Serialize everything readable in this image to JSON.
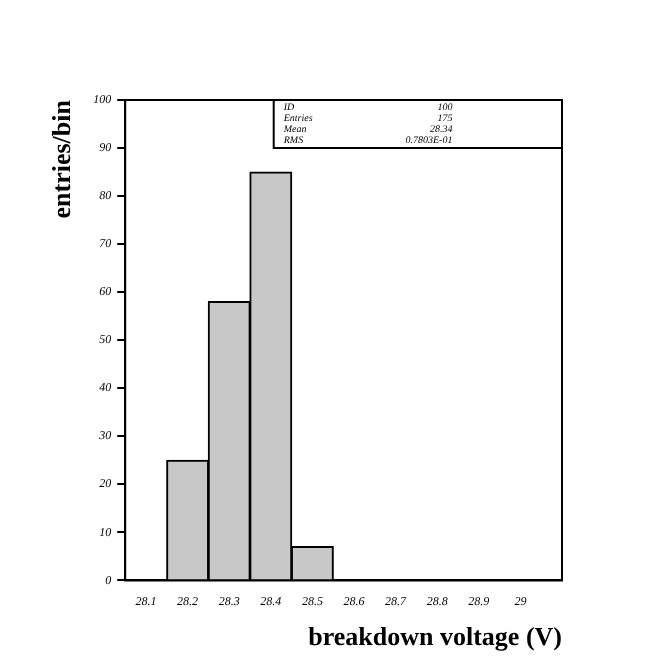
{
  "chart_data": {
    "type": "histogram",
    "xlabel": "breakdown voltage (V)",
    "ylabel": "entries/bin",
    "bins": [
      28.15,
      28.25,
      28.35,
      28.45,
      28.55
    ],
    "values": [
      25,
      58,
      85,
      7
    ],
    "color": "#c8c8c8",
    "xlim": [
      28.05,
      29.1
    ],
    "xticks": [
      28.1,
      28.2,
      28.3,
      28.4,
      28.5,
      28.6,
      28.7,
      28.8,
      28.9,
      29
    ],
    "ylim": [
      0,
      100
    ],
    "yticks": [
      0,
      10,
      20,
      30,
      40,
      50,
      60,
      70,
      80,
      90,
      100
    ],
    "grid": false,
    "legend": false,
    "annotations": [
      "ID 100",
      "Entries 175",
      "Mean 28.34",
      "RMS 0.7803E-01"
    ]
  }
}
